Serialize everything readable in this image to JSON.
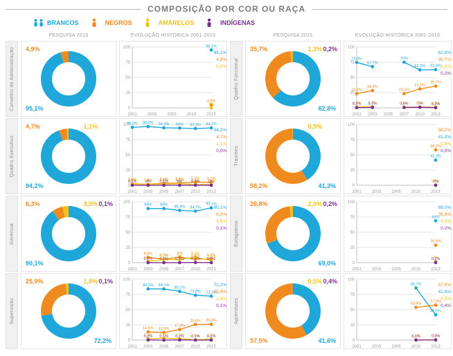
{
  "title": "COMPOSIÇÃO POR COR OU RAÇA",
  "colors": {
    "brancos": "#1fa7d9",
    "negros": "#ef8a1f",
    "amarelos": "#f2c317",
    "indigenas": "#7b2f8e",
    "grid": "#e3e3e3",
    "axis": "#bdbdbd",
    "ticktext": "#9a9a9a"
  },
  "legend": [
    {
      "key": "brancos",
      "label": "BRANCOS"
    },
    {
      "key": "negros",
      "label": "NEGROS"
    },
    {
      "key": "amarelos",
      "label": "AMARELOS"
    },
    {
      "key": "indigenas",
      "label": "INDÍGENAS"
    }
  ],
  "column_headers": {
    "donut": "PESQUISA 2015",
    "line": "EVOLUÇÃO HISTÓRICA 2001-2015"
  },
  "chart_years_full": [
    "2001",
    "2003",
    "2005",
    "2007",
    "2010",
    "2013"
  ],
  "chart_years_short": [
    "2001",
    "2003",
    "2005",
    "2010",
    "2013"
  ],
  "ylim": [
    0,
    100
  ],
  "ytick_step": 25,
  "rows": [
    {
      "left": {
        "vlabel": "Conselho de Administração",
        "donut": {
          "values": {
            "brancos": 95.1,
            "negros": 4.9
          },
          "labels": [
            {
              "txt": "95,1%",
              "key": "brancos",
              "pos": "bl"
            },
            {
              "txt": "4,9%",
              "key": "negros",
              "pos": "tl"
            }
          ]
        },
        "line": {
          "years": "short",
          "series": {
            "brancos": [
              null,
              null,
              null,
              null,
              95.1
            ],
            "negros": [
              null,
              null,
              null,
              null,
              4.9
            ],
            "amarelos": [
              null,
              null,
              null,
              null,
              0.0
            ]
          },
          "end_labels": [
            {
              "txt": "95,1%",
              "key": "brancos"
            },
            {
              "txt": "4,9%",
              "key": "negros"
            },
            {
              "txt": "0,0%",
              "key": "amarelos"
            }
          ]
        }
      },
      "right": {
        "vlabel": "Quadro Funcional",
        "donut": {
          "values": {
            "brancos": 62.8,
            "negros": 35.7,
            "amarelos": 1.3,
            "indigenas": 0.2
          },
          "labels": [
            {
              "txt": "62,8%",
              "key": "brancos",
              "pos": "br"
            },
            {
              "txt": "35,7%",
              "key": "negros",
              "pos": "tl"
            },
            {
              "txt": "1,3%",
              "key": "amarelos",
              "pos": "tr"
            },
            {
              "txt": "0,2%",
              "key": "indigenas",
              "pos": "tr2"
            }
          ]
        },
        "line": {
          "years": "full",
          "series": {
            "brancos": [
              74.6,
              67.7,
              null,
              75.0,
              62.3,
              62.8
            ],
            "negros": [
              23.4,
              28.4,
              null,
              23.4,
              31.1,
              35.7
            ],
            "amarelos": [
              1.5,
              1.8,
              null,
              1.0,
              1.2,
              1.3
            ],
            "indigenas": [
              0.3,
              0.7,
              null,
              0.6,
              1.0,
              0.2
            ]
          },
          "end_labels": [
            {
              "txt": "62,8%",
              "key": "brancos"
            },
            {
              "txt": "35,7%",
              "key": "negros"
            },
            {
              "txt": "1,3%",
              "key": "amarelos"
            },
            {
              "txt": "0,2%",
              "key": "indigenas"
            }
          ]
        }
      }
    },
    {
      "left": {
        "vlabel": "Quadro Executivo",
        "donut": {
          "values": {
            "brancos": 94.2,
            "negros": 4.7,
            "amarelos": 1.1
          },
          "labels": [
            {
              "txt": "94,2%",
              "key": "brancos",
              "pos": "bl"
            },
            {
              "txt": "4,7%",
              "key": "negros",
              "pos": "tl"
            },
            {
              "txt": "1,1%",
              "key": "amarelos",
              "pos": "tr"
            }
          ]
        },
        "line": {
          "years": "full",
          "series": {
            "brancos": [
              95.2,
              96.5,
              94.4,
              94.0,
              93.3,
              94.2
            ],
            "negros": [
              2.6,
              1.8,
              3.4,
              3.5,
              5.3,
              4.7
            ],
            "amarelos": [
              2.1,
              1.7,
              2.1,
              2.5,
              1.3,
              1.1
            ],
            "indigenas": [
              0.1,
              0.0,
              0.1,
              0.0,
              0.1,
              0.0
            ]
          },
          "end_labels": [
            {
              "txt": "94,2%",
              "key": "brancos"
            },
            {
              "txt": "4,7%",
              "key": "negros"
            },
            {
              "txt": "1,1%",
              "key": "amarelos"
            },
            {
              "txt": "0,0%",
              "key": "indigenas"
            }
          ]
        }
      },
      "right": {
        "vlabel": "Trainees",
        "donut": {
          "values": {
            "brancos": 41.3,
            "negros": 58.2,
            "amarelos": 0.5
          },
          "labels": [
            {
              "txt": "41,3%",
              "key": "brancos",
              "pos": "br"
            },
            {
              "txt": "58,2%",
              "key": "negros",
              "pos": "bl"
            },
            {
              "txt": "0,5%",
              "key": "amarelos",
              "pos": "tr"
            }
          ]
        },
        "line": {
          "years": "short",
          "series": {
            "brancos": [
              null,
              null,
              null,
              null,
              41.3
            ],
            "negros": [
              null,
              null,
              null,
              null,
              58.2
            ],
            "amarelos": [
              null,
              null,
              null,
              null,
              0.5
            ],
            "indigenas": [
              null,
              null,
              null,
              null,
              0.0
            ]
          },
          "end_labels": [
            {
              "txt": "58,2%",
              "key": "negros"
            },
            {
              "txt": "41,3%",
              "key": "brancos"
            },
            {
              "txt": "0,5%",
              "key": "amarelos"
            },
            {
              "txt": "0,0%",
              "key": "indigenas"
            }
          ]
        }
      }
    },
    {
      "left": {
        "vlabel": "Gerência",
        "donut": {
          "values": {
            "brancos": 90.1,
            "negros": 6.3,
            "amarelos": 3.5,
            "indigenas": 0.1
          },
          "labels": [
            {
              "txt": "90,1%",
              "key": "brancos",
              "pos": "bl"
            },
            {
              "txt": "6,3%",
              "key": "negros",
              "pos": "tl"
            },
            {
              "txt": "3,5%",
              "key": "amarelos",
              "pos": "tr"
            },
            {
              "txt": "0,1%",
              "key": "indigenas",
              "pos": "tr2"
            }
          ]
        },
        "line": {
          "years": "full",
          "series": {
            "brancos": [
              null,
              89.0,
              89.0,
              85.9,
              84.7,
              90.1
            ],
            "negros": [
              null,
              8.8,
              5.7,
              9.0,
              5.8,
              6.3
            ],
            "amarelos": [
              null,
              2.1,
              5.2,
              5.0,
              9.2,
              3.5
            ],
            "indigenas": [
              null,
              0.1,
              0.1,
              0.1,
              0.3,
              0.1
            ]
          },
          "end_labels": [
            {
              "txt": "90,1%",
              "key": "brancos"
            },
            {
              "txt": "6,3%",
              "key": "negros"
            },
            {
              "txt": "3,5%",
              "key": "amarelos"
            },
            {
              "txt": "0,1%",
              "key": "indigenas"
            }
          ]
        }
      },
      "right": {
        "vlabel": "Estagiários",
        "donut": {
          "values": {
            "brancos": 69.0,
            "negros": 28.8,
            "amarelos": 2.0,
            "indigenas": 0.2
          },
          "labels": [
            {
              "txt": "69,0%",
              "key": "brancos",
              "pos": "br"
            },
            {
              "txt": "28,8%",
              "key": "negros",
              "pos": "tl"
            },
            {
              "txt": "2,0%",
              "key": "amarelos",
              "pos": "tr"
            },
            {
              "txt": "0,2%",
              "key": "indigenas",
              "pos": "tr2"
            }
          ]
        },
        "line": {
          "years": "short",
          "series": {
            "brancos": [
              null,
              null,
              null,
              null,
              69.0
            ],
            "negros": [
              null,
              null,
              null,
              null,
              28.8
            ],
            "amarelos": [
              null,
              null,
              null,
              null,
              2.0
            ],
            "indigenas": [
              null,
              null,
              null,
              null,
              0.2
            ]
          },
          "end_labels": [
            {
              "txt": "69,0%",
              "key": "brancos"
            },
            {
              "txt": "28,8%",
              "key": "negros"
            },
            {
              "txt": "2,0%",
              "key": "amarelos"
            },
            {
              "txt": "0,2%",
              "key": "indigenas"
            }
          ]
        }
      }
    },
    {
      "left": {
        "vlabel": "Supervisão",
        "donut": {
          "values": {
            "brancos": 72.2,
            "negros": 25.9,
            "amarelos": 1.8,
            "indigenas": 0.1
          },
          "labels": [
            {
              "txt": "72,2%",
              "key": "brancos",
              "pos": "br"
            },
            {
              "txt": "25,9%",
              "key": "negros",
              "pos": "tl"
            },
            {
              "txt": "1,8%",
              "key": "amarelos",
              "pos": "tr"
            },
            {
              "txt": "0,1%",
              "key": "indigenas",
              "pos": "tr2"
            }
          ]
        },
        "line": {
          "years": "full",
          "series": {
            "brancos": [
              null,
              84.2,
              84.1,
              80.1,
              73.8,
              72.2
            ],
            "negros": [
              null,
              13.5,
              12.5,
              17.4,
              25.6,
              25.9
            ],
            "amarelos": [
              null,
              2.1,
              3.3,
              2.3,
              0.5,
              1.8
            ],
            "indigenas": [
              null,
              0.2,
              0.1,
              0.2,
              0.1,
              0.1
            ]
          },
          "end_labels": [
            {
              "txt": "72,2%",
              "key": "brancos"
            },
            {
              "txt": "25,9%",
              "key": "negros"
            },
            {
              "txt": "1,8%",
              "key": "amarelos"
            },
            {
              "txt": "0,1%",
              "key": "indigenas"
            }
          ]
        }
      },
      "right": {
        "vlabel": "Aprendizes",
        "donut": {
          "values": {
            "brancos": 41.6,
            "negros": 57.5,
            "amarelos": 0.5,
            "indigenas": 0.4
          },
          "labels": [
            {
              "txt": "41,6%",
              "key": "brancos",
              "pos": "br"
            },
            {
              "txt": "57,5%",
              "key": "negros",
              "pos": "bl"
            },
            {
              "txt": "0,5%",
              "key": "amarelos",
              "pos": "tr"
            },
            {
              "txt": "0,4%",
              "key": "indigenas",
              "pos": "tr2"
            }
          ]
        },
        "line": {
          "years": "short",
          "series": {
            "brancos": [
              null,
              null,
              null,
              85.7,
              41.6
            ],
            "negros": [
              null,
              null,
              null,
              53.8,
              57.5
            ],
            "amarelos": [
              null,
              null,
              null,
              0.4,
              0.5
            ],
            "indigenas": [
              null,
              null,
              null,
              0.1,
              0.4
            ]
          },
          "end_labels": [
            {
              "txt": "57,5%",
              "key": "negros"
            },
            {
              "txt": "41,6%",
              "key": "brancos"
            },
            {
              "txt": "0,5%",
              "key": "amarelos"
            },
            {
              "txt": "0,4%",
              "key": "indigenas"
            }
          ]
        }
      }
    }
  ]
}
